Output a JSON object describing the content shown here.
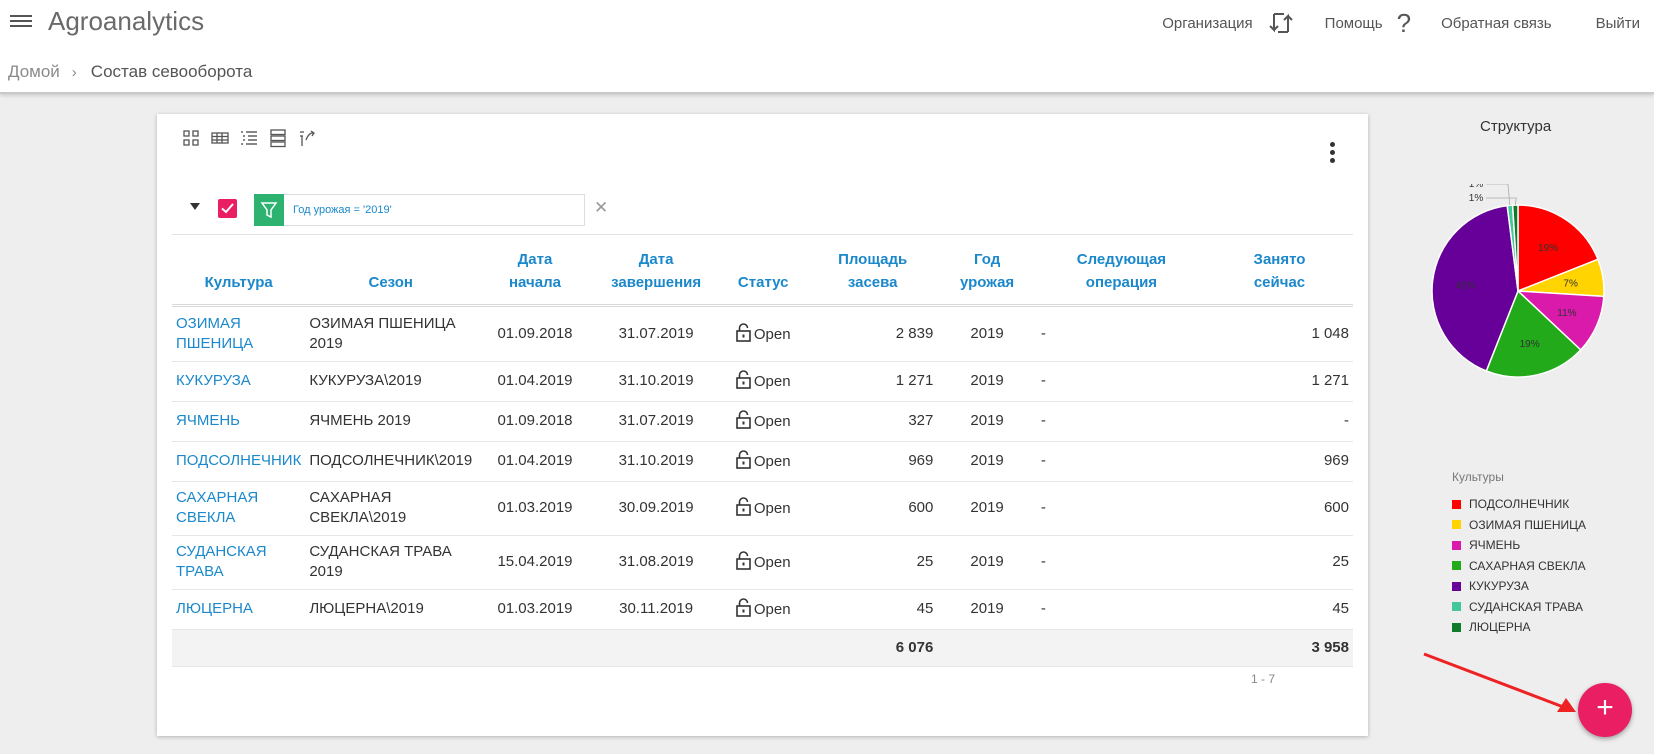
{
  "app": {
    "title": "Agroanalytics",
    "nav": {
      "org": "Организация",
      "help": "Помощь",
      "feedback": "Обратная связь",
      "logout": "Выйти"
    }
  },
  "breadcrumb": {
    "home": "Домой",
    "current": "Состав севооборота"
  },
  "filter": {
    "text": "Год урожая = '2019'"
  },
  "table": {
    "headers": {
      "culture": "Культура",
      "season": "Сезон",
      "start1": "Дата",
      "start2": "начала",
      "end1": "Дата",
      "end2": "завершения",
      "status": "Статус",
      "area1": "Площадь",
      "area2": "засева",
      "year1": "Год",
      "year2": "урожая",
      "next1": "Следующая",
      "next2": "операция",
      "busy1": "Занято",
      "busy2": "сейчас"
    },
    "rows": [
      {
        "culture": [
          "ОЗИМАЯ",
          "ПШЕНИЦА"
        ],
        "season": [
          "ОЗИМАЯ ПШЕНИЦА",
          "2019"
        ],
        "start": "01.09.2018",
        "end": "31.07.2019",
        "status": "Open",
        "area": "2 839",
        "year": "2019",
        "next": "-",
        "busy": "1 048"
      },
      {
        "culture": [
          "КУКУРУЗА"
        ],
        "season": [
          "КУКУРУЗА\\2019"
        ],
        "start": "01.04.2019",
        "end": "31.10.2019",
        "status": "Open",
        "area": "1 271",
        "year": "2019",
        "next": "-",
        "busy": "1 271"
      },
      {
        "culture": [
          "ЯЧМЕНЬ"
        ],
        "season": [
          "ЯЧМЕНЬ 2019"
        ],
        "start": "01.09.2018",
        "end": "31.07.2019",
        "status": "Open",
        "area": "327",
        "year": "2019",
        "next": "-",
        "busy": "-"
      },
      {
        "culture": [
          "ПОДСОЛНЕЧНИК"
        ],
        "season": [
          "ПОДСОЛНЕЧНИК\\2019"
        ],
        "start": "01.04.2019",
        "end": "31.10.2019",
        "status": "Open",
        "area": "969",
        "year": "2019",
        "next": "-",
        "busy": "969"
      },
      {
        "culture": [
          "САХАРНАЯ",
          "СВЕКЛА"
        ],
        "season": [
          "САХАРНАЯ",
          "СВЕКЛА\\2019"
        ],
        "start": "01.03.2019",
        "end": "30.09.2019",
        "status": "Open",
        "area": "600",
        "year": "2019",
        "next": "-",
        "busy": "600"
      },
      {
        "culture": [
          "СУДАНСКАЯ",
          "ТРАВА"
        ],
        "season": [
          "СУДАНСКАЯ ТРАВА",
          "2019"
        ],
        "start": "15.04.2019",
        "end": "31.08.2019",
        "status": "Open",
        "area": "25",
        "year": "2019",
        "next": "-",
        "busy": "25"
      },
      {
        "culture": [
          "ЛЮЦЕРНА"
        ],
        "season": [
          "ЛЮЦЕРНА\\2019"
        ],
        "start": "01.03.2019",
        "end": "30.11.2019",
        "status": "Open",
        "area": "45",
        "year": "2019",
        "next": "-",
        "busy": "45"
      }
    ],
    "totals": {
      "area": "6 076",
      "busy": "3 958"
    },
    "pager": "1 - 7"
  },
  "sidebar": {
    "title": "Структура",
    "legend_title": "Культуры"
  },
  "chart_data": {
    "type": "pie",
    "title": "Структура",
    "legend_title": "Культуры",
    "slices": [
      {
        "name": "ПОДСОЛНЕЧНИК",
        "value": 19,
        "label": "19%",
        "color": "#ff0000"
      },
      {
        "name": "ОЗИМАЯ ПШЕНИЦА",
        "value": 7,
        "label": "7%",
        "color": "#ffd400"
      },
      {
        "name": "ЯЧМЕНЬ",
        "value": 11,
        "label": "11%",
        "color": "#d91aaa"
      },
      {
        "name": "САХАРНАЯ СВЕКЛА",
        "value": 19,
        "label": "19%",
        "color": "#22aa1a"
      },
      {
        "name": "КУКУРУЗА",
        "value": 42,
        "label": "42%",
        "color": "#660099"
      },
      {
        "name": "СУДАНСКАЯ ТРАВА",
        "value": 1,
        "label": "1%",
        "color": "#44c89a"
      },
      {
        "name": "ЛЮЦЕРНА",
        "value": 1,
        "label": "1%",
        "color": "#0f7a2a"
      }
    ]
  }
}
